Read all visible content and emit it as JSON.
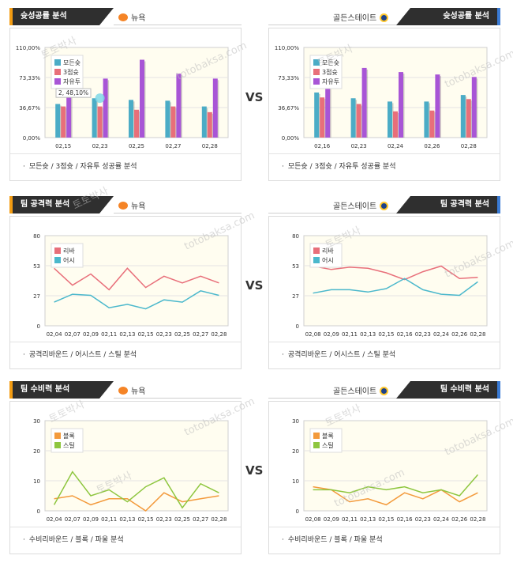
{
  "vs_label": "VS",
  "sections": [
    {
      "title": "슛성공률 분석",
      "left_team": "뉴욕",
      "right_team": "골든스테이트",
      "footer": "모든슛 / 3점슛 / 자유투 성공률 분석",
      "charts": [
        {
          "type": "bar",
          "ylim": [
            0,
            110
          ],
          "yticks": [
            "0,00%",
            "36,67%",
            "73,33%",
            "110,00%"
          ],
          "categories": [
            "02,15",
            "02,23",
            "02,25",
            "02,27",
            "02,28"
          ],
          "series": [
            {
              "name": "모든슛",
              "color": "#4bacc6",
              "values": [
                41,
                48,
                46,
                45,
                38
              ]
            },
            {
              "name": "3점슛",
              "color": "#e86f7a",
              "values": [
                38,
                38,
                34,
                38,
                31
              ]
            },
            {
              "name": "자유투",
              "color": "#a855d6",
              "values": [
                65,
                72,
                95,
                78,
                72
              ]
            }
          ],
          "tooltip": "2, 48,10%"
        },
        {
          "type": "bar",
          "ylim": [
            0,
            110
          ],
          "yticks": [
            "0,00%",
            "36,67%",
            "73,33%",
            "110,00%"
          ],
          "categories": [
            "02,16",
            "02,23",
            "02,24",
            "02,26",
            "02,28"
          ],
          "series": [
            {
              "name": "모든슛",
              "color": "#4bacc6",
              "values": [
                55,
                48,
                44,
                44,
                52
              ]
            },
            {
              "name": "3점슛",
              "color": "#e86f7a",
              "values": [
                49,
                41,
                32,
                33,
                47
              ]
            },
            {
              "name": "자유투",
              "color": "#a855d6",
              "values": [
                70,
                85,
                80,
                77,
                74
              ]
            }
          ]
        }
      ]
    },
    {
      "title": "팀 공격력 분석",
      "left_team": "뉴욕",
      "right_team": "골든스테이트",
      "footer": "공격리바운드 / 어시스트 / 스틸 분석",
      "charts": [
        {
          "type": "line",
          "ylim": [
            0,
            80
          ],
          "yticks": [
            "0",
            "27",
            "53",
            "80"
          ],
          "categories": [
            "02,04",
            "02,07",
            "02,09",
            "02,11",
            "02,13",
            "02,15",
            "02,23",
            "02,25",
            "02,27",
            "02,28"
          ],
          "series": [
            {
              "name": "리바",
              "color": "#e86f7a",
              "values": [
                51,
                36,
                46,
                32,
                51,
                34,
                44,
                38,
                44,
                38
              ]
            },
            {
              "name": "어시",
              "color": "#4bb8cc",
              "values": [
                21,
                28,
                27,
                16,
                19,
                15,
                23,
                21,
                31,
                27
              ]
            }
          ]
        },
        {
          "type": "line",
          "ylim": [
            0,
            80
          ],
          "yticks": [
            "0",
            "27",
            "53",
            "80"
          ],
          "categories": [
            "02,08",
            "02,09",
            "02,11",
            "02,13",
            "02,15",
            "02,16",
            "02,23",
            "02,24",
            "02,26",
            "02,28"
          ],
          "series": [
            {
              "name": "리바",
              "color": "#e86f7a",
              "values": [
                53,
                50,
                52,
                51,
                47,
                41,
                48,
                53,
                42,
                43
              ]
            },
            {
              "name": "어시",
              "color": "#4bb8cc",
              "values": [
                29,
                32,
                32,
                30,
                33,
                42,
                32,
                28,
                27,
                39
              ]
            }
          ]
        }
      ]
    },
    {
      "title": "팀 수비력 분석",
      "left_team": "뉴욕",
      "right_team": "골든스테이트",
      "footer": "수비리바운드 / 블록 / 파울 분석",
      "charts": [
        {
          "type": "line",
          "ylim": [
            0,
            30
          ],
          "yticks": [
            "0",
            "10",
            "20",
            "30"
          ],
          "categories": [
            "02,04",
            "02,07",
            "02,09",
            "02,11",
            "02,13",
            "02,15",
            "02,23",
            "02,25",
            "02,27",
            "02,28"
          ],
          "series": [
            {
              "name": "블록",
              "color": "#f39a3c",
              "values": [
                4,
                5,
                2,
                4,
                4,
                0,
                6,
                3,
                4,
                5
              ]
            },
            {
              "name": "스틸",
              "color": "#8ec63f",
              "values": [
                2,
                13,
                5,
                7,
                3,
                8,
                11,
                1,
                9,
                6
              ]
            }
          ]
        },
        {
          "type": "line",
          "ylim": [
            0,
            30
          ],
          "yticks": [
            "0",
            "10",
            "20",
            "30"
          ],
          "categories": [
            "02,08",
            "02,09",
            "02,11",
            "02,13",
            "02,15",
            "02,16",
            "02,23",
            "02,24",
            "02,26",
            "02,28"
          ],
          "series": [
            {
              "name": "블록",
              "color": "#f39a3c",
              "values": [
                8,
                7,
                3,
                4,
                2,
                6,
                4,
                7,
                3,
                6
              ]
            },
            {
              "name": "스틸",
              "color": "#8ec63f",
              "values": [
                7,
                7,
                6,
                8,
                7,
                8,
                6,
                7,
                5,
                12
              ]
            }
          ]
        }
      ]
    }
  ],
  "watermark": [
    "토토박사",
    "totobaksa.com"
  ]
}
